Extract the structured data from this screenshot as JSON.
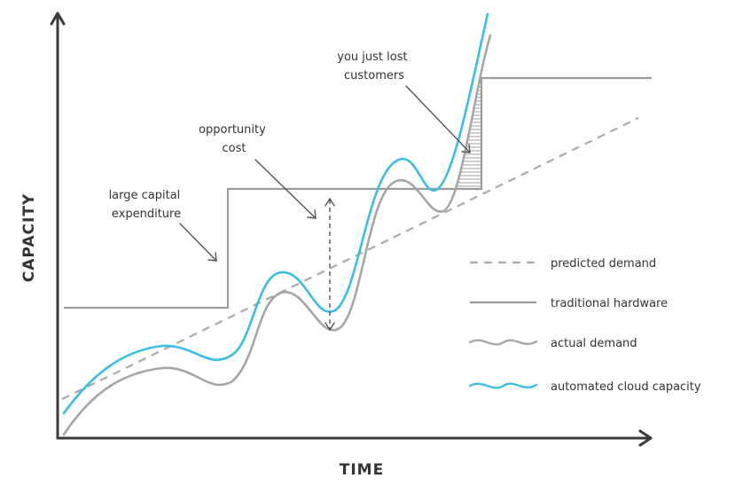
{
  "axes": {
    "x_label": "TIME",
    "y_label": "CAPACITY"
  },
  "annotations": {
    "capital": [
      "large capital",
      "expenditure"
    ],
    "opportunity": [
      "opportunity",
      "cost"
    ],
    "lost": [
      "you just lost",
      "customers"
    ]
  },
  "legend": {
    "predicted": "predicted demand",
    "traditional": "traditional hardware",
    "actual": "actual demand",
    "cloud": "automated cloud capacity"
  },
  "colors": {
    "axis": "#3a3a3a",
    "predicted": "#aaaaaa",
    "traditional": "#9b9b9b",
    "actual": "#a6a6a6",
    "cloud": "#3cbde6",
    "text": "#333333"
  }
}
